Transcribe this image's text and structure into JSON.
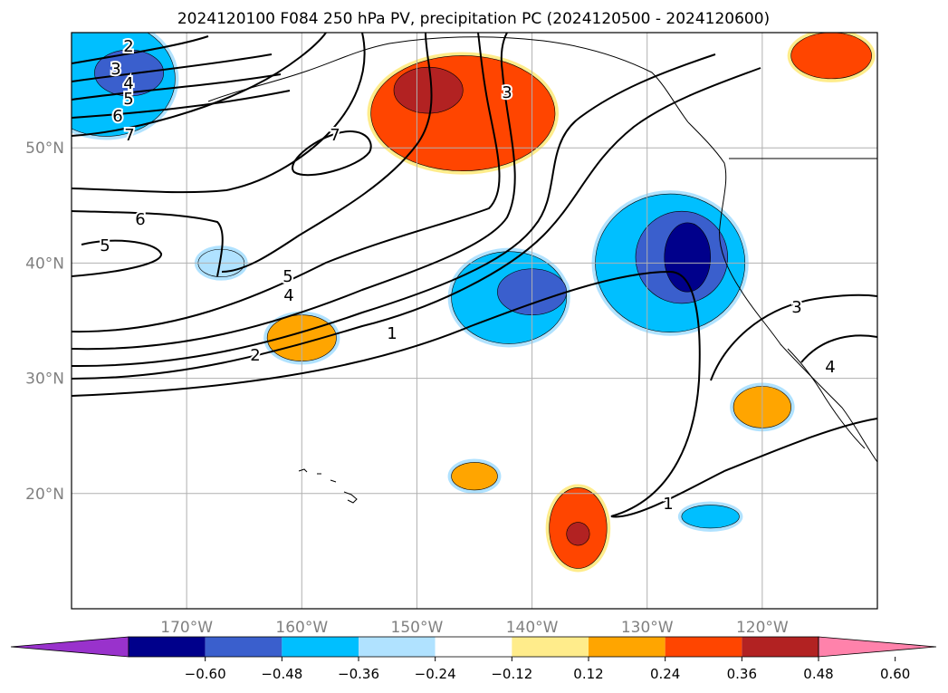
{
  "chart_data": {
    "type": "contour",
    "title": "2024120100 F084 250 hPa PV, precipitation PC (2024120500 - 2024120600)",
    "projection": "cylindrical",
    "lon_range": [
      -180,
      -110
    ],
    "lat_range": [
      10,
      60
    ],
    "x_ticks": [
      -170,
      -160,
      -150,
      -140,
      -130,
      -120
    ],
    "x_tick_labels": [
      "170°W",
      "160°W",
      "150°W",
      "140°W",
      "130°W",
      "120°W"
    ],
    "y_ticks": [
      20,
      30,
      40,
      50
    ],
    "y_tick_labels": [
      "20°N",
      "30°N",
      "40°N",
      "50°N"
    ],
    "grid": true,
    "colorbar": {
      "orientation": "horizontal",
      "extend": "both",
      "tick_values": [
        -0.6,
        -0.48,
        -0.36,
        -0.24,
        -0.12,
        0.12,
        0.24,
        0.36,
        0.48,
        0.6
      ],
      "tick_labels": [
        "−0.60",
        "−0.48",
        "−0.36",
        "−0.24",
        "−0.12",
        "0.12",
        "0.24",
        "0.36",
        "0.48",
        "0.60"
      ],
      "colors": [
        "#9932cc",
        "#00008b",
        "#3a5fcd",
        "#00bfff",
        "#b0e2ff",
        "#ffffff",
        "#ffec8b",
        "#ffa500",
        "#ff4500",
        "#b22222",
        "#ff82ab"
      ]
    },
    "shaded_regions": [
      {
        "level": -0.36,
        "color": "#00bfff",
        "center": [
          -177,
          56
        ],
        "radius": [
          6,
          5
        ]
      },
      {
        "level": -0.48,
        "color": "#3a5fcd",
        "center": [
          -175,
          56.5
        ],
        "radius": [
          3,
          2
        ]
      },
      {
        "level": -0.36,
        "color": "#00bfff",
        "center": [
          -128,
          40
        ],
        "radius": [
          6.5,
          6
        ]
      },
      {
        "level": -0.48,
        "color": "#3a5fcd",
        "center": [
          -127,
          40.5
        ],
        "radius": [
          4,
          4
        ]
      },
      {
        "level": -0.6,
        "color": "#00008b",
        "center": [
          -126.5,
          40.5
        ],
        "radius": [
          2,
          3
        ]
      },
      {
        "level": -0.36,
        "color": "#00bfff",
        "center": [
          -142,
          37
        ],
        "radius": [
          5,
          4
        ]
      },
      {
        "level": -0.48,
        "color": "#3a5fcd",
        "center": [
          -140,
          37.5
        ],
        "radius": [
          3,
          2
        ]
      },
      {
        "level": -0.36,
        "color": "#00bfff",
        "center": [
          -124.5,
          18
        ],
        "radius": [
          2.5,
          1
        ]
      },
      {
        "level": -0.24,
        "color": "#b0e2ff",
        "center": [
          -167,
          40
        ],
        "radius": [
          2,
          1.2
        ]
      },
      {
        "level": 0.36,
        "color": "#ff4500",
        "center": [
          -146,
          53
        ],
        "radius": [
          8,
          5
        ]
      },
      {
        "level": 0.48,
        "color": "#b22222",
        "center": [
          -149,
          55
        ],
        "radius": [
          3,
          2
        ]
      },
      {
        "level": 0.24,
        "color": "#ffa500",
        "center": [
          -160,
          33.5
        ],
        "radius": [
          3,
          2
        ]
      },
      {
        "level": 0.36,
        "color": "#ff4500",
        "center": [
          -136,
          17
        ],
        "radius": [
          2.5,
          3.5
        ]
      },
      {
        "level": 0.48,
        "color": "#b22222",
        "center": [
          -136,
          16.5
        ],
        "radius": [
          1,
          1
        ]
      },
      {
        "level": 0.24,
        "color": "#ffa500",
        "center": [
          -145,
          21.5
        ],
        "radius": [
          2,
          1.2
        ]
      },
      {
        "level": 0.24,
        "color": "#ffa500",
        "center": [
          -120,
          27.5
        ],
        "radius": [
          2.5,
          1.8
        ]
      },
      {
        "level": 0.36,
        "color": "#ff4500",
        "center": [
          -114,
          58
        ],
        "radius": [
          3.5,
          2
        ]
      }
    ],
    "contour_labels": [
      "1",
      "2",
      "3",
      "4",
      "5",
      "6",
      "7"
    ]
  }
}
